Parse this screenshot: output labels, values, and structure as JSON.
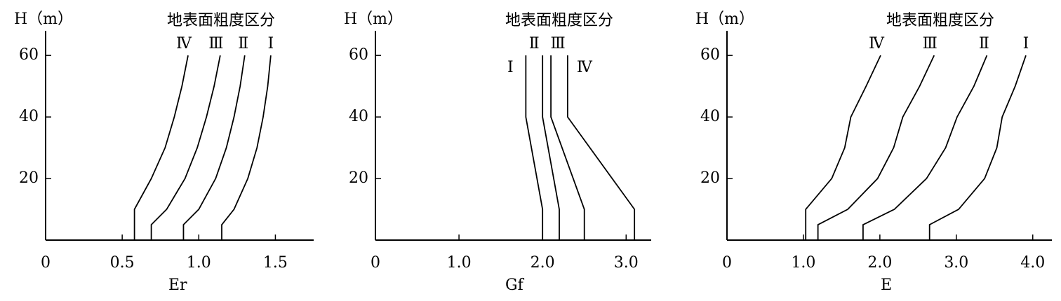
{
  "chart_data": [
    {
      "type": "line",
      "y_label": "H（m）",
      "legend_title": "地表面粗度区分",
      "x_label": "Er",
      "xlim": [
        0,
        1.75
      ],
      "ylim": [
        0,
        68
      ],
      "xticks": [
        0,
        0.5,
        {
          "value": 1,
          "label": "1.0"
        },
        1.5
      ],
      "yticks": [
        20,
        40,
        60
      ],
      "y": [
        0,
        5,
        10,
        20,
        30,
        40,
        50,
        60
      ],
      "series": [
        {
          "name": "Ⅰ",
          "color": "#000000",
          "values": [
            1.15,
            1.15,
            1.23,
            1.32,
            1.38,
            1.42,
            1.45,
            1.47
          ]
        },
        {
          "name": "Ⅱ",
          "color": "#000000",
          "values": [
            0.9,
            0.9,
            1.0,
            1.11,
            1.18,
            1.23,
            1.27,
            1.3
          ]
        },
        {
          "name": "Ⅲ",
          "color": "#000000",
          "values": [
            0.69,
            0.69,
            0.79,
            0.91,
            0.99,
            1.05,
            1.1,
            1.14
          ]
        },
        {
          "name": "Ⅳ",
          "color": "#000000",
          "values": [
            0.58,
            0.58,
            0.58,
            0.69,
            0.78,
            0.84,
            0.89,
            0.93
          ]
        }
      ]
    },
    {
      "type": "line",
      "y_label": "H（m）",
      "legend_title": "地表面粗度区分",
      "x_label": "Gf",
      "xlim": [
        0,
        3.3
      ],
      "ylim": [
        0,
        68
      ],
      "xticks": [
        0,
        {
          "value": 1,
          "label": "1.0"
        },
        {
          "value": 2,
          "label": "2.0"
        },
        {
          "value": 3,
          "label": "3.0"
        }
      ],
      "yticks": [
        20,
        40,
        60
      ],
      "y": [
        0,
        10,
        40,
        60
      ],
      "series": [
        {
          "name": "Ⅰ",
          "color": "#000000",
          "values": [
            2.0,
            2.0,
            1.8,
            1.8
          ]
        },
        {
          "name": "Ⅱ",
          "color": "#000000",
          "values": [
            2.2,
            2.2,
            2.0,
            2.0
          ]
        },
        {
          "name": "Ⅲ",
          "color": "#000000",
          "values": [
            2.5,
            2.5,
            2.1,
            2.1
          ]
        },
        {
          "name": "Ⅳ",
          "color": "#000000",
          "values": [
            3.1,
            3.1,
            2.3,
            2.3
          ]
        }
      ]
    },
    {
      "type": "line",
      "y_label": "H（m）",
      "legend_title": "地表面粗度区分",
      "x_label": "E",
      "xlim": [
        0,
        4.25
      ],
      "ylim": [
        0,
        68
      ],
      "xticks": [
        0,
        {
          "value": 1,
          "label": "1.0"
        },
        {
          "value": 2,
          "label": "2.0"
        },
        {
          "value": 3,
          "label": "3.0"
        },
        {
          "value": 4,
          "label": "4.0"
        }
      ],
      "yticks": [
        20,
        40,
        60
      ],
      "y": [
        0,
        5,
        10,
        20,
        30,
        40,
        50,
        60
      ],
      "series": [
        {
          "name": "Ⅰ",
          "color": "#000000",
          "values": [
            2.65,
            2.65,
            3.03,
            3.37,
            3.53,
            3.6,
            3.77,
            3.91
          ]
        },
        {
          "name": "Ⅱ",
          "color": "#000000",
          "values": [
            1.78,
            1.78,
            2.19,
            2.61,
            2.86,
            3.01,
            3.23,
            3.4
          ]
        },
        {
          "name": "Ⅲ",
          "color": "#000000",
          "values": [
            1.19,
            1.19,
            1.58,
            1.97,
            2.18,
            2.3,
            2.52,
            2.71
          ]
        },
        {
          "name": "Ⅳ",
          "color": "#000000",
          "values": [
            1.03,
            1.03,
            1.03,
            1.37,
            1.54,
            1.62,
            1.82,
            2.01
          ]
        }
      ]
    }
  ]
}
